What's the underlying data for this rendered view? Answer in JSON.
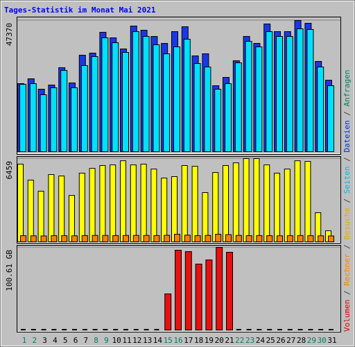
{
  "title": "Tages-Statistik im Monat Mai 2021",
  "legend": {
    "separator": "/",
    "items": [
      {
        "name": "Volumen",
        "color": "#E00000"
      },
      {
        "name": "Rechner",
        "color": "#FF8000"
      },
      {
        "name": "Besuche",
        "color": "#E8A800"
      },
      {
        "name": "Seiten",
        "color": "#00B8E0"
      },
      {
        "name": "Dateien",
        "color": "#0030D0"
      },
      {
        "name": "Anfragen",
        "color": "#008060"
      }
    ]
  },
  "chart_data": [
    {
      "type": "bar",
      "ylim": [
        0,
        47370
      ],
      "yticks": [
        47370
      ],
      "series": [
        {
          "color": "#1838E8",
          "values": [
            24560,
            26310,
            22550,
            24060,
            30320,
            24810,
            34830,
            35590,
            43100,
            41100,
            37090,
            45360,
            43850,
            41600,
            39090,
            43350,
            45110,
            34580,
            35330,
            23810,
            26810,
            32830,
            41600,
            39090,
            46110,
            43350,
            43350,
            47370,
            46360,
            32580,
            25810
          ]
        },
        {
          "color": "#00E0FF",
          "values": [
            24310,
            24560,
            20550,
            23060,
            29320,
            23060,
            31080,
            34330,
            41100,
            39340,
            35840,
            43350,
            41600,
            38590,
            35330,
            37840,
            40600,
            31830,
            30570,
            22550,
            24560,
            32080,
            39840,
            37840,
            43350,
            41600,
            41600,
            44360,
            44110,
            30570,
            23810
          ]
        }
      ]
    },
    {
      "type": "bar",
      "ylim": [
        0,
        6459
      ],
      "yticks": [
        6459
      ],
      "series": [
        {
          "color": "#FFFF00",
          "values": [
            6030,
            4790,
            3930,
            5220,
            5110,
            3600,
            5330,
            5700,
            5920,
            5970,
            6290,
            5970,
            6030,
            5650,
            4950,
            5060,
            5920,
            5860,
            3820,
            5380,
            5920,
            6130,
            6459,
            6459,
            5970,
            5330,
            5650,
            6290,
            6240,
            2260,
            860
          ]
        },
        {
          "color": "#FF8000",
          "values": [
            480,
            470,
            460,
            480,
            480,
            470,
            490,
            500,
            500,
            490,
            500,
            500,
            500,
            490,
            510,
            590,
            520,
            480,
            500,
            590,
            560,
            500,
            480,
            490,
            480,
            470,
            480,
            490,
            480,
            470,
            460
          ]
        }
      ]
    },
    {
      "type": "bar",
      "ylim": [
        0,
        100.61
      ],
      "yticks": [
        {
          "value": 100.61,
          "label": "100.61 GB"
        }
      ],
      "categories": [
        "1",
        "2",
        "3",
        "4",
        "5",
        "6",
        "7",
        "8",
        "9",
        "10",
        "11",
        "12",
        "13",
        "14",
        "15",
        "16",
        "17",
        "18",
        "19",
        "20",
        "21",
        "22",
        "23",
        "24",
        "25",
        "26",
        "27",
        "28",
        "29",
        "30",
        "31"
      ],
      "category_colors": [
        "#008060",
        "#008060",
        "#000000",
        "#000000",
        "#000000",
        "#000000",
        "#000000",
        "#008060",
        "#008060",
        "#000000",
        "#000000",
        "#000000",
        "#000000",
        "#000000",
        "#008060",
        "#008060",
        "#000000",
        "#000000",
        "#000000",
        "#000000",
        "#000000",
        "#008060",
        "#008060",
        "#000000",
        "#000000",
        "#000000",
        "#000000",
        "#000000",
        "#008060",
        "#008060",
        "#000000"
      ],
      "series": [
        {
          "color": "#E81010",
          "values": [
            0,
            0,
            0,
            0,
            0,
            0,
            0,
            0,
            0,
            0,
            0,
            0,
            0,
            0,
            43.97,
            97.23,
            95.54,
            80.32,
            85.39,
            100.61,
            94.7,
            0,
            0,
            0,
            0,
            0,
            0,
            0,
            0,
            0,
            0
          ]
        }
      ]
    }
  ]
}
